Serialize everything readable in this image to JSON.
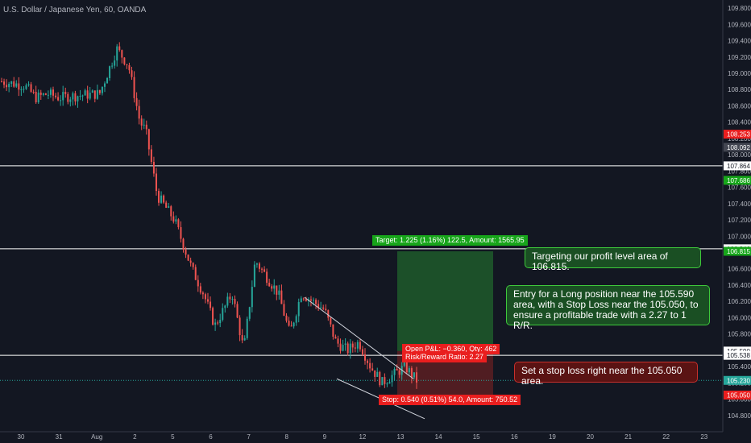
{
  "chart_data": {
    "type": "candlestick",
    "title": "U.S. Dollar / Japanese Yen, 60, OANDA",
    "ylim": [
      104.6,
      109.9
    ],
    "y_ticks": [
      104.8,
      105.0,
      105.2,
      105.4,
      105.6,
      105.8,
      106.0,
      106.2,
      106.4,
      106.6,
      106.8,
      107.0,
      107.2,
      107.4,
      107.6,
      107.8,
      108.0,
      108.2,
      108.4,
      108.6,
      108.8,
      109.0,
      109.2,
      109.4,
      109.6,
      109.8
    ],
    "y_tick_labels": [
      "104.800",
      "105.000",
      "105.200",
      "105.400",
      "105.600",
      "105.800",
      "106.000",
      "106.200",
      "106.400",
      "106.600",
      "106.800",
      "107.000",
      "107.200",
      "107.400",
      "107.600",
      "107.800",
      "108.000",
      "108.200",
      "108.400",
      "108.600",
      "108.800",
      "109.000",
      "109.200",
      "109.400",
      "109.600",
      "109.800"
    ],
    "x_labels": [
      "30",
      "31",
      "Aug",
      "2",
      "5",
      "6",
      "7",
      "8",
      "9",
      "12",
      "13",
      "14",
      "15",
      "16",
      "19",
      "20",
      "21",
      "22",
      "23"
    ],
    "price_path": [
      [
        0,
        108.9
      ],
      [
        4,
        108.85
      ],
      [
        6,
        108.7
      ],
      [
        8,
        108.75
      ],
      [
        10,
        108.7
      ],
      [
        12,
        108.72
      ],
      [
        17,
        108.75
      ],
      [
        20,
        109.3
      ],
      [
        22,
        109.1
      ],
      [
        24,
        108.4
      ],
      [
        25,
        108.3
      ],
      [
        27,
        107.5
      ],
      [
        30,
        107.2
      ],
      [
        33,
        106.6
      ],
      [
        35,
        106.3
      ],
      [
        37,
        105.9
      ],
      [
        40,
        106.3
      ],
      [
        42,
        105.6
      ],
      [
        44,
        106.7
      ],
      [
        46,
        106.5
      ],
      [
        48,
        106.3
      ],
      [
        50,
        105.8
      ],
      [
        52,
        106.3
      ],
      [
        54,
        106.2
      ],
      [
        56,
        106.1
      ],
      [
        58,
        105.7
      ],
      [
        60,
        105.6
      ],
      [
        62,
        105.7
      ],
      [
        64,
        105.4
      ],
      [
        66,
        105.2
      ],
      [
        68,
        105.3
      ],
      [
        70,
        105.4
      ],
      [
        72,
        105.23
      ]
    ],
    "horizontal_levels": [
      {
        "value": 107.864,
        "label": "107.864",
        "color": "#ffffff"
      },
      {
        "value": 106.846,
        "label": "106.846",
        "color": "#ffffff"
      },
      {
        "value": 105.538,
        "label": "105.538",
        "color": "#ffffff"
      },
      {
        "value": 105.23,
        "label": "105.230",
        "color": "#26a69a"
      }
    ],
    "axis_price_tags": [
      {
        "value": 108.253,
        "label": "108.253",
        "color": "#e91e1e"
      },
      {
        "value": 108.092,
        "label": "108.092",
        "color": "#434651"
      },
      {
        "value": 107.864,
        "label": "107.864",
        "color": "#ffffff"
      },
      {
        "value": 107.686,
        "label": "107.686",
        "color": "#17a51a"
      },
      {
        "value": 106.846,
        "label": "106.846",
        "color": "#ffffff"
      },
      {
        "value": 106.815,
        "label": "106.815",
        "color": "#17a51a"
      },
      {
        "value": 105.59,
        "label": "105.590",
        "color": "#ffffff"
      },
      {
        "value": 105.538,
        "label": "105.538",
        "color": "#ffffff"
      },
      {
        "value": 105.23,
        "label": "105.230",
        "color": "#26a69a"
      },
      {
        "value": 105.05,
        "label": "105.050",
        "color": "#e91e1e"
      }
    ],
    "position": {
      "entry": 105.59,
      "target": 106.815,
      "stop": 105.05,
      "target_label": "Target: 1.225 (1.16%) 122.5, Amount: 1565.95",
      "stop_label": "Stop: 0.540 (0.51%) 54.0, Amount: 750.52",
      "pnl_label": "Open P&L: −0.360, Qty: 462",
      "rr_label": "Risk/Reward Ratio: 2.27"
    }
  },
  "notes": {
    "target": "Targeting our profit level area of 106.815.",
    "entry": "Entry for a Long position near the 105.590 area, with a Stop Loss near the 105.050, to ensure a profitable trade with a 2.27 to 1 R/R.",
    "stop": "Set a stop loss right near the 105.050 area."
  },
  "colors": {
    "background": "#131722",
    "up": "#26a69a",
    "down": "#ef5350",
    "target_zone": "#1e5a2a",
    "stop_zone": "#5c1f22"
  }
}
